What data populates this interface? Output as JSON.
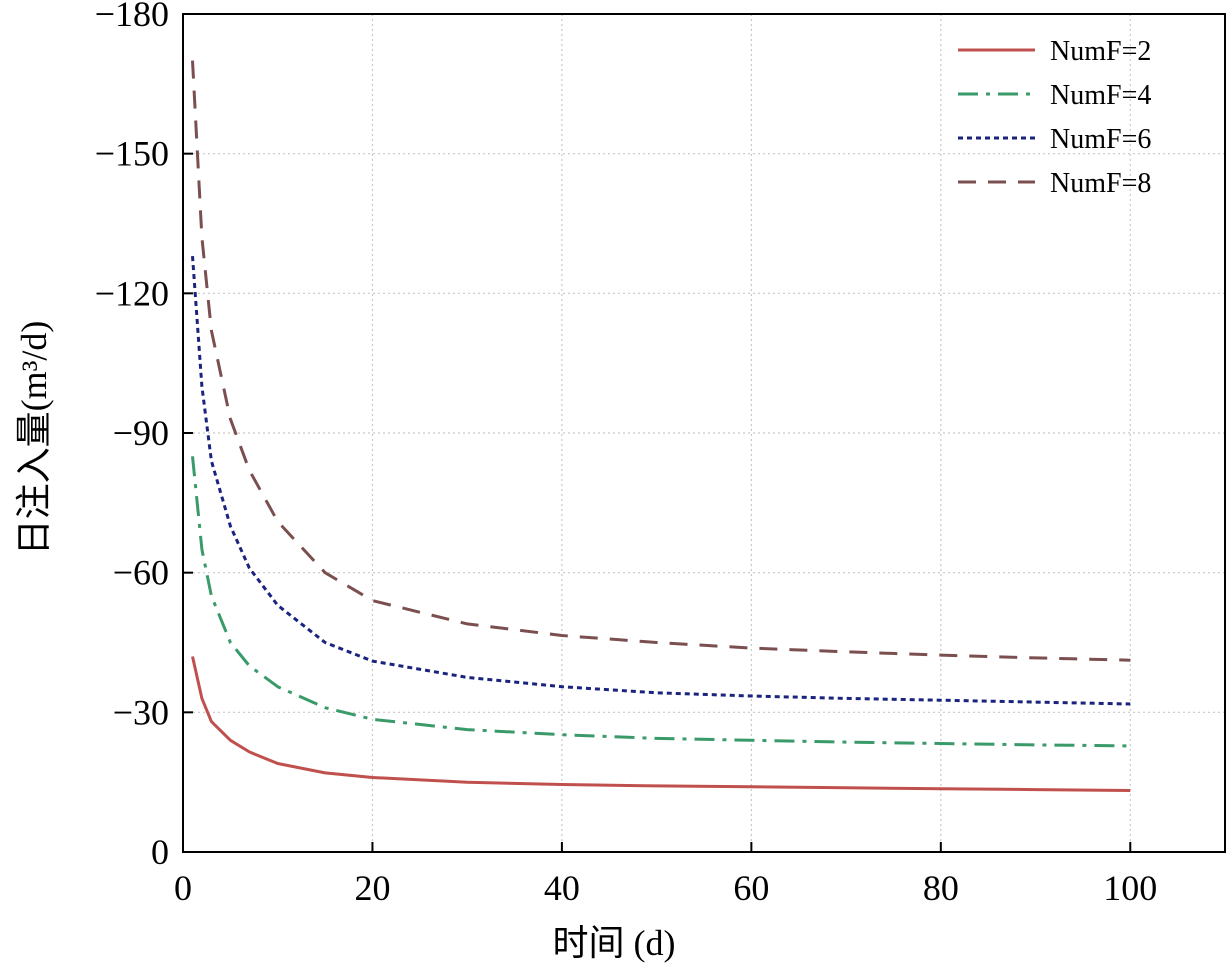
{
  "chart_data": {
    "type": "line",
    "title": "",
    "xlabel": "时间  (d)",
    "ylabel": "日注入量(m³/d)",
    "xlim": [
      0,
      110
    ],
    "ylim": [
      0,
      -180
    ],
    "x_ticks": [
      0,
      20,
      40,
      60,
      80,
      100
    ],
    "x_tick_labels": [
      "0",
      "20",
      "40",
      "60",
      "80",
      "100"
    ],
    "y_ticks": [
      0,
      -30,
      -60,
      -90,
      -120,
      -150,
      -180
    ],
    "y_tick_labels": [
      "0",
      "−30",
      "−60",
      "−90",
      "−120",
      "−150",
      "−180"
    ],
    "grid": true,
    "legend_position": "top-right",
    "x": [
      1,
      2,
      3,
      5,
      7,
      10,
      15,
      20,
      30,
      40,
      50,
      60,
      70,
      80,
      90,
      100
    ],
    "series": [
      {
        "name": "NumF=2",
        "color": "#c0504d",
        "style": "solid",
        "values": [
          -42,
          -33,
          -28,
          -24,
          -21.5,
          -19,
          -17,
          -16,
          -15,
          -14.5,
          -14.2,
          -14,
          -13.8,
          -13.6,
          -13.4,
          -13.2
        ]
      },
      {
        "name": "NumF=4",
        "color": "#3a9a6a",
        "style": "dashdot",
        "values": [
          -85,
          -65,
          -55,
          -45,
          -40,
          -35.5,
          -31,
          -28.5,
          -26.3,
          -25.2,
          -24.4,
          -24,
          -23.6,
          -23.3,
          -23,
          -22.8
        ]
      },
      {
        "name": "NumF=6",
        "color": "#1a237e",
        "style": "dotted",
        "values": [
          -128,
          -100,
          -84,
          -70,
          -61,
          -53,
          -45,
          -41,
          -37.5,
          -35.5,
          -34.2,
          -33.5,
          -33,
          -32.6,
          -32.2,
          -31.8
        ]
      },
      {
        "name": "NumF=8",
        "color": "#7b4f4f",
        "style": "dashed",
        "values": [
          -170,
          -132,
          -112,
          -93,
          -82,
          -71,
          -60,
          -54,
          -49,
          -46.5,
          -45,
          -43.8,
          -43,
          -42.3,
          -41.7,
          -41.2
        ]
      }
    ]
  }
}
